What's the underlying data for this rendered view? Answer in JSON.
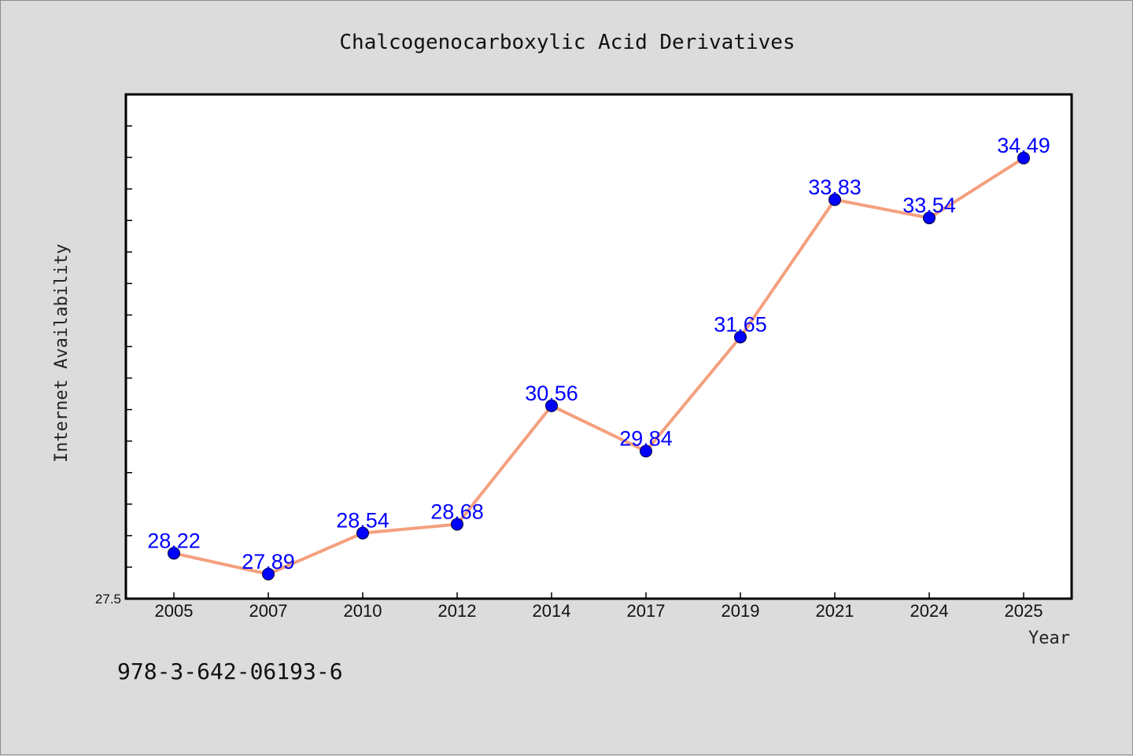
{
  "chart_data": {
    "type": "line",
    "title": "Chalcogenocarboxylic Acid Derivatives",
    "xlabel": "Year",
    "ylabel": "Internet Availability",
    "categories": [
      "2005",
      "2007",
      "2010",
      "2012",
      "2014",
      "2017",
      "2019",
      "2021",
      "2024",
      "2025"
    ],
    "series": [
      {
        "values": [
          28.22,
          27.89,
          28.54,
          28.68,
          30.56,
          29.84,
          31.65,
          33.83,
          33.54,
          34.49
        ],
        "labels": [
          "28.22",
          "27.89",
          "28.54",
          "28.68",
          "30.56",
          "29.84",
          "31.65",
          "33.83",
          "33.54",
          "34.49"
        ],
        "line_color": "#f4a07e",
        "marker_color": "#0000ff"
      }
    ],
    "ylim": [
      27.5,
      35.5
    ],
    "yticks": [
      "27.5"
    ],
    "grid": false,
    "legend": "none"
  },
  "footer_text": "978-3-642-06193-6",
  "colors": {
    "background": "#dcdcdc",
    "plot_background": "#ffffff",
    "line": "#f4a07e",
    "marker": "#0000ff",
    "data_label": "#0000ff"
  }
}
